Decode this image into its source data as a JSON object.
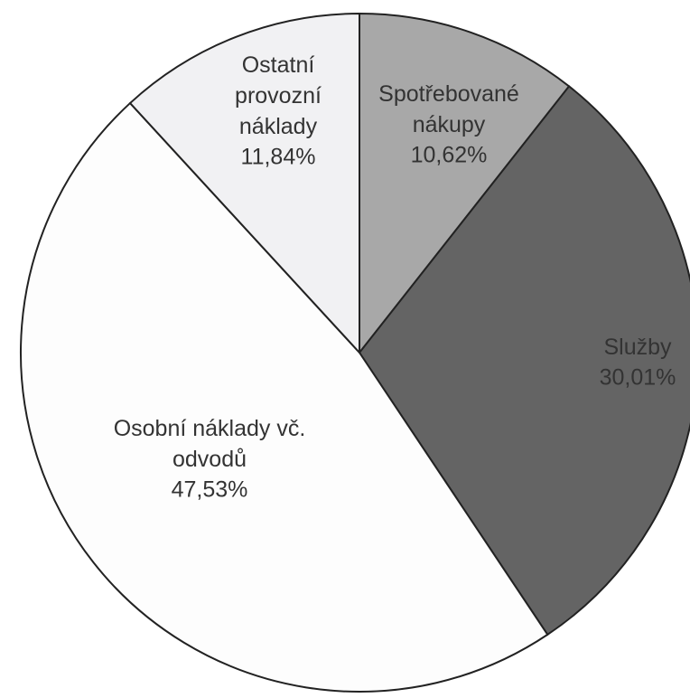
{
  "chart_data": {
    "type": "pie",
    "categories": [
      "Spotřebované nákupy",
      "Služby",
      "Osobní náklady vč. odvodů",
      "Ostatní provozní náklady"
    ],
    "values": [
      10.62,
      30.01,
      47.53,
      11.84
    ],
    "value_labels": [
      "10,62%",
      "30,01%",
      "47,53%",
      "11,84%"
    ],
    "colors": [
      "#a8a8a8",
      "#646464",
      "#fdfdfd",
      "#f1f1f3"
    ]
  }
}
